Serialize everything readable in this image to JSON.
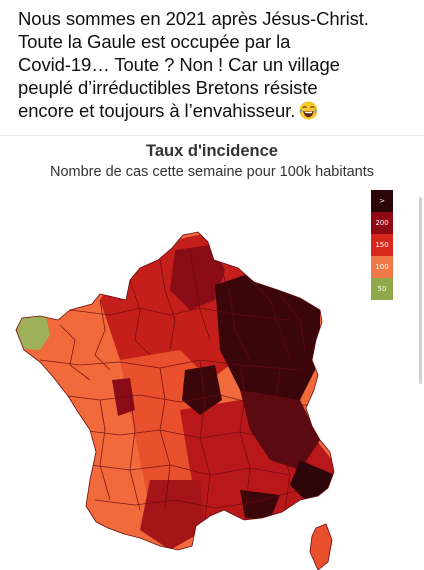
{
  "post": {
    "lines": [
      "Nous sommes en 2021 après Jésus-Christ.",
      "Toute la Gaule est occupée par la",
      "Covid-19… Toute ? Non ! Car un village",
      "peuplé d’irréductibles Bretons résiste",
      "encore et toujours à l’envahisseur."
    ],
    "emoji_icon": "face-with-tears-of-joy-icon"
  },
  "map": {
    "title": "Taux d'incidence",
    "subtitle": "Nombre de cas cette semaine pour 100k habitants",
    "legend": [
      {
        "label": ">",
        "color": "#2b0508"
      },
      {
        "label": "200",
        "color": "#8f0a14"
      },
      {
        "label": "150",
        "color": "#d8281c"
      },
      {
        "label": "100",
        "color": "#f07848"
      },
      {
        "label": "50",
        "color": "#8fa84a"
      }
    ],
    "colors": {
      "darkest": "#3a060a",
      "dark": "#8a0c16",
      "red": "#c51f1c",
      "orange_red": "#e8502e",
      "orange": "#f06a3c",
      "green": "#9eb05a",
      "border": "#6a0a0e"
    }
  }
}
